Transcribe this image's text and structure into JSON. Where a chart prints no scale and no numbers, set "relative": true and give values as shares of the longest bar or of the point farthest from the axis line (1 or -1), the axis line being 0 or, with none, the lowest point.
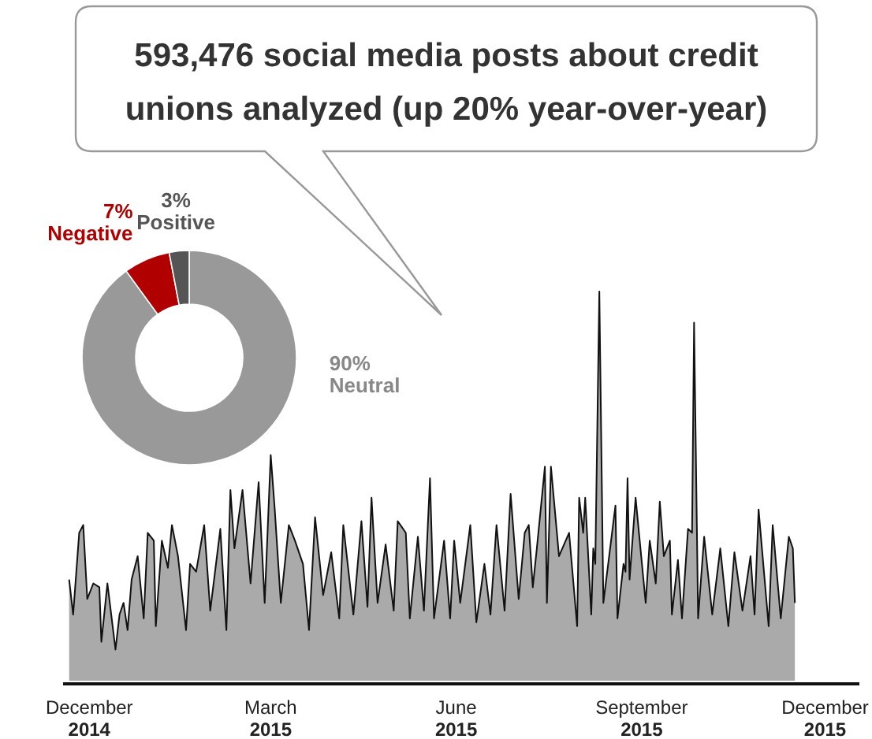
{
  "chart_data": [
    {
      "type": "area",
      "title": "593,476 social media posts about credit unions analyzed (up 20% year-over-year)",
      "relative": true,
      "color": "#aaaaaa",
      "xlim": [
        "2014-11-18",
        "2015-12-18"
      ],
      "xticks": [
        {
          "value": "2014-12-01",
          "label": "December 2014"
        },
        {
          "value": "2015-03-01",
          "label": "March 2015"
        },
        {
          "value": "2015-06-01",
          "label": "June 2015"
        },
        {
          "value": "2015-09-01",
          "label": "September 2015"
        },
        {
          "value": "2015-12-01",
          "label": "December 2015"
        }
      ],
      "x": [
        "2014-11-21",
        "2014-11-23",
        "2014-11-26",
        "2014-11-28",
        "2014-11-30",
        "2014-12-03",
        "2014-12-06",
        "2014-12-07",
        "2014-12-10",
        "2014-12-14",
        "2014-12-16",
        "2014-12-18",
        "2014-12-20",
        "2014-12-22",
        "2014-12-25",
        "2014-12-28",
        "2014-12-30",
        "2015-01-02",
        "2015-01-03",
        "2015-01-06",
        "2015-01-09",
        "2015-01-11",
        "2015-01-14",
        "2015-01-18",
        "2015-01-20",
        "2015-01-23",
        "2015-01-27",
        "2015-01-30",
        "2015-02-04",
        "2015-02-07",
        "2015-02-09",
        "2015-02-11",
        "2015-02-15",
        "2015-02-19",
        "2015-02-23",
        "2015-02-26",
        "2015-03-01",
        "2015-03-03",
        "2015-03-06",
        "2015-03-10",
        "2015-03-13",
        "2015-03-17",
        "2015-03-20",
        "2015-03-23",
        "2015-03-27",
        "2015-03-31",
        "2015-04-04",
        "2015-04-06",
        "2015-04-11",
        "2015-04-15",
        "2015-04-18",
        "2015-04-20",
        "2015-04-23",
        "2015-04-27",
        "2015-05-01",
        "2015-05-03",
        "2015-05-07",
        "2015-05-09",
        "2015-05-13",
        "2015-05-16",
        "2015-05-19",
        "2015-05-21",
        "2015-05-26",
        "2015-05-29",
        "2015-05-31",
        "2015-06-03",
        "2015-06-08",
        "2015-06-11",
        "2015-06-15",
        "2015-06-18",
        "2015-06-21",
        "2015-06-25",
        "2015-06-28",
        "2015-07-02",
        "2015-07-05",
        "2015-07-07",
        "2015-07-09",
        "2015-07-11",
        "2015-07-15",
        "2015-07-16",
        "2015-07-18",
        "2015-07-22",
        "2015-07-27",
        "2015-07-31",
        "2015-08-01",
        "2015-08-03",
        "2015-08-04",
        "2015-08-07",
        "2015-08-08",
        "2015-08-09",
        "2015-08-11",
        "2015-08-13",
        "2015-08-19",
        "2015-08-20",
        "2015-08-23",
        "2015-08-24",
        "2015-08-25",
        "2015-08-26",
        "2015-08-29",
        "2015-09-03",
        "2015-09-05",
        "2015-09-08",
        "2015-09-10",
        "2015-09-12",
        "2015-09-15",
        "2015-09-16",
        "2015-09-19",
        "2015-09-21",
        "2015-09-24",
        "2015-09-26",
        "2015-09-27",
        "2015-09-29",
        "2015-10-02",
        "2015-10-06",
        "2015-10-10",
        "2015-10-14",
        "2015-10-17",
        "2015-10-21",
        "2015-10-25",
        "2015-10-27",
        "2015-10-29",
        "2015-11-03",
        "2015-11-05",
        "2015-11-09",
        "2015-11-13",
        "2015-11-15",
        "2015-11-16"
      ],
      "values": [
        0.26,
        0.17,
        0.38,
        0.4,
        0.21,
        0.25,
        0.24,
        0.1,
        0.25,
        0.08,
        0.17,
        0.2,
        0.13,
        0.26,
        0.32,
        0.16,
        0.38,
        0.36,
        0.14,
        0.36,
        0.29,
        0.4,
        0.32,
        0.13,
        0.3,
        0.28,
        0.4,
        0.18,
        0.39,
        0.13,
        0.49,
        0.34,
        0.49,
        0.25,
        0.51,
        0.2,
        0.58,
        0.44,
        0.2,
        0.4,
        0.36,
        0.3,
        0.13,
        0.42,
        0.22,
        0.33,
        0.16,
        0.4,
        0.17,
        0.41,
        0.19,
        0.47,
        0.2,
        0.35,
        0.18,
        0.41,
        0.38,
        0.16,
        0.37,
        0.18,
        0.52,
        0.16,
        0.36,
        0.16,
        0.36,
        0.2,
        0.4,
        0.15,
        0.3,
        0.17,
        0.4,
        0.18,
        0.48,
        0.21,
        0.38,
        0.4,
        0.24,
        0.34,
        0.55,
        0.2,
        0.55,
        0.32,
        0.38,
        0.14,
        0.47,
        0.38,
        0.47,
        0.17,
        0.34,
        0.3,
        1.0,
        0.2,
        0.45,
        0.16,
        0.3,
        0.28,
        0.52,
        0.26,
        0.47,
        0.2,
        0.36,
        0.25,
        0.46,
        0.32,
        0.36,
        0.17,
        0.31,
        0.16,
        0.39,
        0.38,
        0.92,
        0.16,
        0.37,
        0.17,
        0.34,
        0.14,
        0.33,
        0.18,
        0.32,
        0.17,
        0.44,
        0.14,
        0.4,
        0.16,
        0.37,
        0.34,
        0.2
      ]
    },
    {
      "type": "donut",
      "categories": [
        "Neutral",
        "Negative",
        "Positive"
      ],
      "values": [
        90,
        7,
        3
      ],
      "colors": [
        "#999999",
        "#b00000",
        "#555555"
      ],
      "value_labels": [
        "90%",
        "7%",
        "3%"
      ]
    }
  ]
}
